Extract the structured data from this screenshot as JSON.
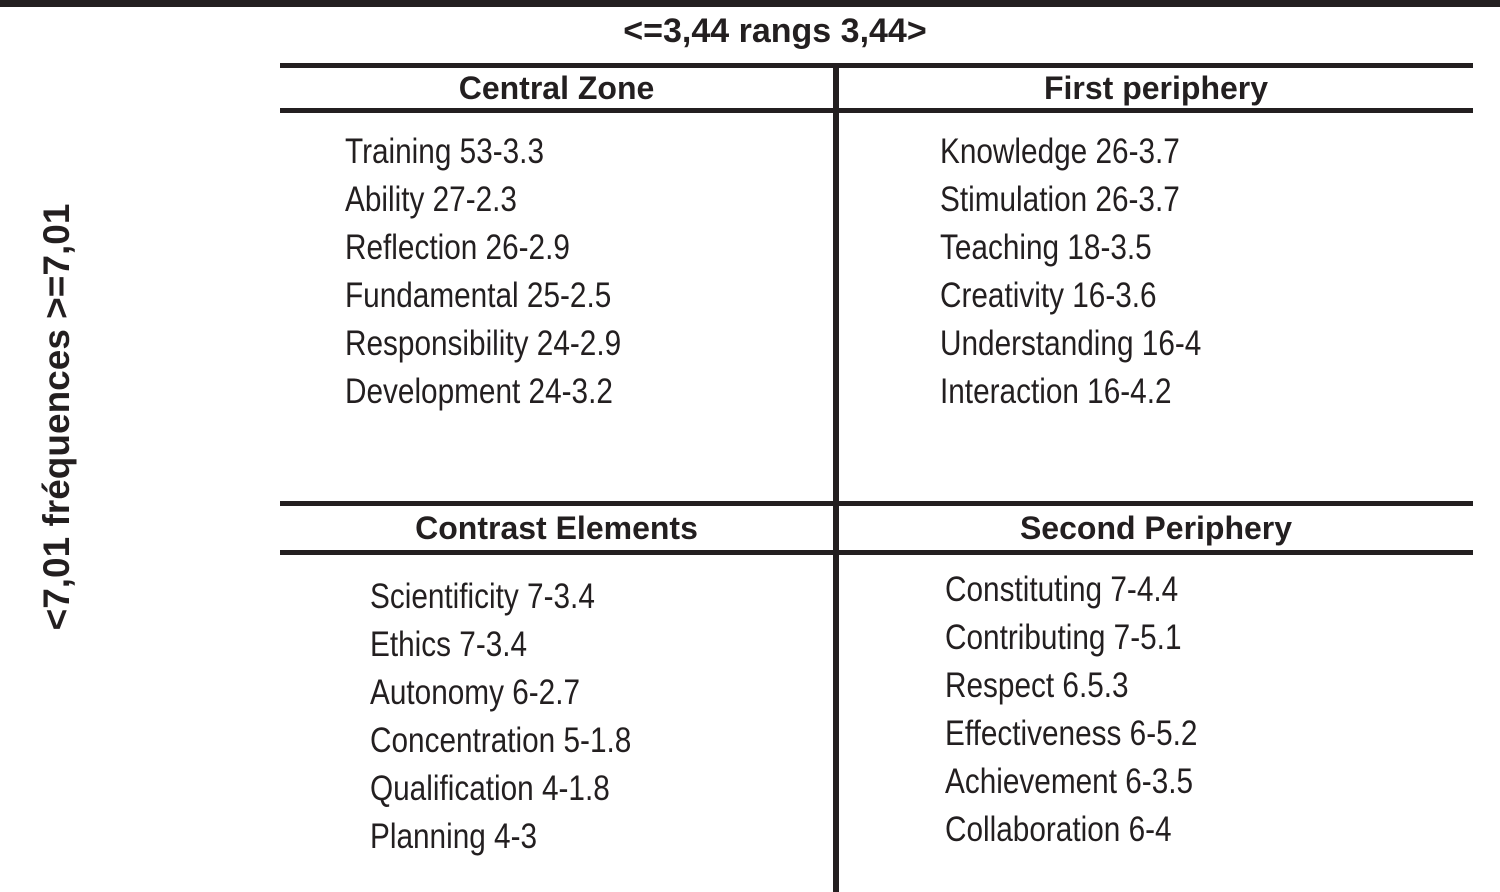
{
  "figure": {
    "top_axis_label": "<=3,44 rangs 3,44>",
    "left_axis_label": "<7,01 fréquences >=7,01",
    "colors": {
      "ink": "#231f20",
      "background": "#ffffff"
    },
    "quadrants": {
      "central_zone": {
        "title": "Central Zone",
        "items": [
          "Training 53-3.3",
          "Ability 27-2.3",
          "Reflection 26-2.9",
          "Fundamental 25-2.5",
          "Responsibility 24-2.9",
          "Development 24-3.2"
        ]
      },
      "first_periphery": {
        "title": "First periphery",
        "items": [
          "Knowledge 26-3.7",
          "Stimulation 26-3.7",
          "Teaching 18-3.5",
          "Creativity 16-3.6",
          "Understanding 16-4",
          "Interaction 16-4.2"
        ]
      },
      "contrast_elements": {
        "title": "Contrast Elements",
        "items": [
          "Scientificity 7-3.4",
          "Ethics 7-3.4",
          "Autonomy 6-2.7",
          "Concentration 5-1.8",
          "Qualification 4-1.8",
          "Planning 4-3"
        ]
      },
      "second_periphery": {
        "title": "Second Periphery",
        "items": [
          "Constituting 7-4.4",
          "Contributing 7-5.1",
          "Respect 6.5.3",
          "Effectiveness 6-5.2",
          "Achievement 6-3.5",
          "Collaboration 6-4"
        ]
      }
    }
  }
}
